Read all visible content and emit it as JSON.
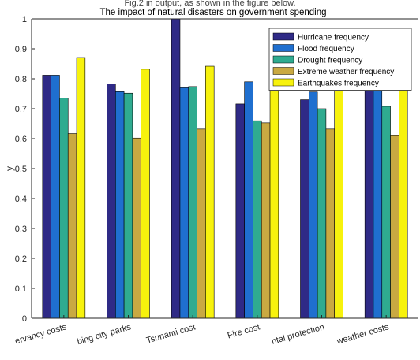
{
  "clipped_caption": "Fig.2 in output, as shown in the figure below.",
  "chart_data": {
    "type": "bar",
    "title": "The impact of natural disasters on government spending",
    "xlabel": "",
    "ylabel": "y",
    "ylim": [
      0,
      1
    ],
    "yticks": [
      "0",
      "0.1",
      "0.2",
      "0.3",
      "0.4",
      "0.5",
      "0.6",
      "0.7",
      "0.8",
      "0.9",
      "1"
    ],
    "categories": [
      "ervancy costs",
      "bing city parks",
      "Tsunami cost",
      "Fire cost",
      "ntal protection",
      "weather costs"
    ],
    "legend_position": "top-right",
    "grid": false,
    "series": [
      {
        "name": "Hurricane frequency",
        "color": "#2f2a86",
        "values": [
          0.812,
          0.783,
          1.0,
          0.716,
          0.73,
          0.76
        ]
      },
      {
        "name": "Flood frequency",
        "color": "#1f6fcf",
        "values": [
          0.812,
          0.757,
          0.77,
          0.79,
          0.756,
          0.76
        ]
      },
      {
        "name": "Drought frequency",
        "color": "#2fab90",
        "values": [
          0.735,
          0.752,
          0.774,
          0.66,
          0.7,
          0.708
        ]
      },
      {
        "name": "Extreme weather frequency",
        "color": "#c9a942",
        "values": [
          0.617,
          0.602,
          0.632,
          0.653,
          0.632,
          0.61
        ]
      },
      {
        "name": "Earthquakes frequency",
        "color": "#f7f20d",
        "values": [
          0.871,
          0.832,
          0.842,
          0.76,
          0.76,
          0.842
        ]
      }
    ]
  }
}
